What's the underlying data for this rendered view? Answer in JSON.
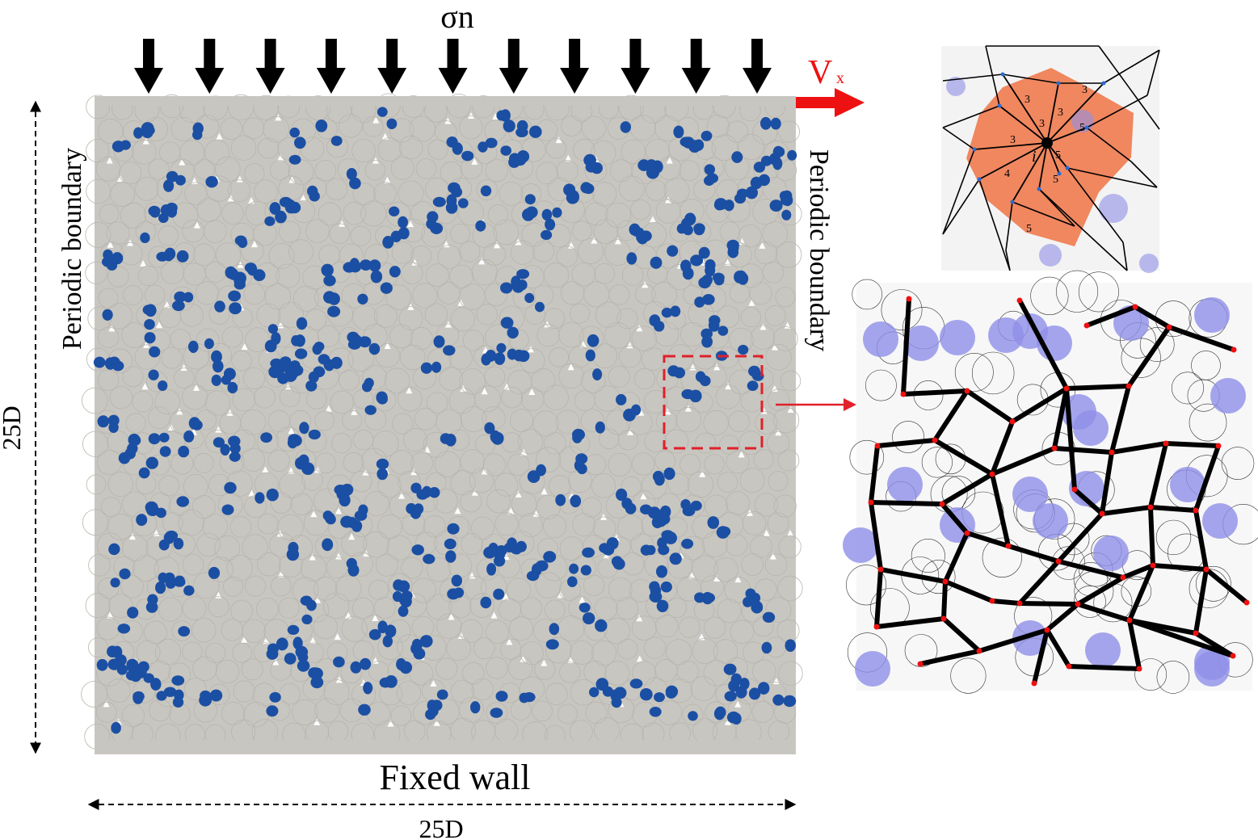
{
  "labels": {
    "normal_stress": "σn",
    "velocity": "V",
    "velocity_sub": "x",
    "left_boundary": "Periodic boundary",
    "right_boundary": "Periodic boundary",
    "bottom": "Fixed wall",
    "height": "25D",
    "width": "25D"
  },
  "inset_top": {
    "center_label": "i",
    "numbers": [
      "3",
      "3",
      "3",
      "3",
      "5",
      "3",
      "4",
      "5",
      "5",
      "5"
    ]
  },
  "colors": {
    "grain": "#c8c6c0",
    "cluster": "#1b4fa3",
    "arrow": "#000000",
    "velocity_arrow": "#ee1111",
    "highlight_box": "#e0202a",
    "orange_cell": "#f0875f",
    "blue_cell": "#8f8fe8",
    "network": "#000000",
    "node": "#ee1111"
  }
}
